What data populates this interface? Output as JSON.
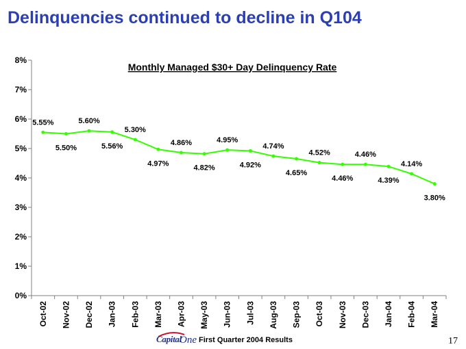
{
  "slide": {
    "title": "Delinquencies continued to decline in Q104",
    "footer_text": "First Quarter 2004 Results",
    "page_number": "17",
    "logo_text_capital": "Capital",
    "logo_text_one": "One"
  },
  "colors": {
    "title": "#2b3fb2",
    "line": "#33ff00",
    "axis": "#808080"
  },
  "chart_data": {
    "type": "line",
    "title": "Monthly Managed $30+ Day Delinquency Rate",
    "xlabel": "",
    "ylabel": "",
    "ylim": [
      0,
      8
    ],
    "yticks": [
      0,
      1,
      2,
      3,
      4,
      5,
      6,
      7,
      8
    ],
    "ytick_labels": [
      "0%",
      "1%",
      "2%",
      "3%",
      "4%",
      "5%",
      "6%",
      "7%",
      "8%"
    ],
    "grid": false,
    "categories": [
      "Oct-02",
      "Nov-02",
      "Dec-02",
      "Jan-03",
      "Feb-03",
      "Mar-03",
      "Apr-03",
      "May-03",
      "Jun-03",
      "Jul-03",
      "Aug-03",
      "Sep-03",
      "Oct-03",
      "Nov-03",
      "Dec-03",
      "Jan-04",
      "Feb-04",
      "Mar-04"
    ],
    "series": [
      {
        "name": "Monthly Managed $30+ Day Delinquency Rate",
        "values": [
          5.55,
          5.5,
          5.6,
          5.56,
          5.3,
          4.97,
          4.86,
          4.82,
          4.95,
          4.92,
          4.74,
          4.65,
          4.52,
          4.46,
          4.46,
          4.39,
          4.14,
          3.8
        ],
        "labels": [
          "5.55%",
          "5.50%",
          "5.60%",
          "5.56%",
          "5.30%",
          "4.97%",
          "4.86%",
          "4.82%",
          "4.95%",
          "4.92%",
          "4.74%",
          "4.65%",
          "4.52%",
          "4.46%",
          "4.46%",
          "4.39%",
          "4.14%",
          "3.80%"
        ],
        "label_positions": [
          "above",
          "below",
          "above",
          "below",
          "above",
          "below",
          "above",
          "below",
          "above",
          "below",
          "above",
          "below",
          "above",
          "below",
          "above",
          "below",
          "above",
          "below"
        ]
      }
    ]
  }
}
